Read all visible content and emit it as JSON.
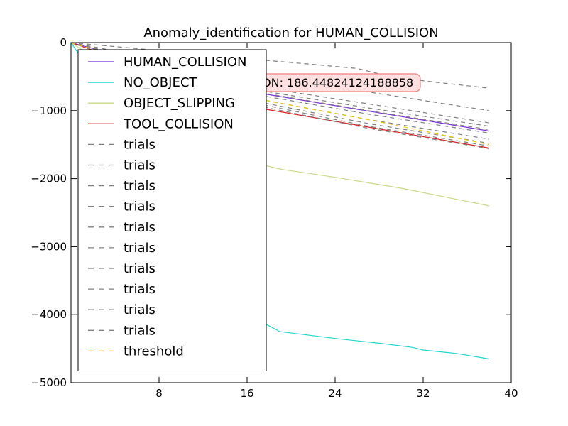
{
  "chart_data": {
    "type": "line",
    "title": "Anomaly_identification for HUMAN_COLLISION",
    "xlabel": "",
    "ylabel": "",
    "xlim": [
      0,
      40
    ],
    "ylim": [
      -5000,
      0
    ],
    "xticks": [
      8,
      16,
      24,
      32,
      40
    ],
    "xtick_labels": [
      "8",
      "16",
      "24",
      "32",
      "40"
    ],
    "yticks": [
      0,
      -1000,
      -2000,
      -3000,
      -4000,
      -5000
    ],
    "ytick_labels": [
      "0",
      "−1000",
      "−2000",
      "−3000",
      "−4000",
      "−5000"
    ],
    "grid": false,
    "legend_position": "upper-left",
    "annotation": {
      "text": "ON: 186.44824124188858",
      "x": 28.5,
      "y": -600,
      "style": "rounded-box",
      "facecolor": "#ffe0e0",
      "edgecolor": "#f08080"
    },
    "series": [
      {
        "name": "HUMAN_COLLISION",
        "color": "#7b2fd4",
        "style": "solid",
        "x": [
          0,
          17,
          38
        ],
        "y": [
          0,
          -740,
          -1300
        ]
      },
      {
        "name": "NO_OBJECT",
        "color": "#22d6d0",
        "style": "solid",
        "x": [
          0,
          17,
          19,
          24,
          28,
          31,
          32,
          35,
          38
        ],
        "y": [
          0,
          -4080,
          -4250,
          -4350,
          -4420,
          -4480,
          -4520,
          -4570,
          -4650
        ]
      },
      {
        "name": "OBJECT_SLIPPING",
        "color": "#c8da88",
        "style": "solid",
        "x": [
          0,
          17,
          19,
          24,
          30,
          38
        ],
        "y": [
          0,
          -1780,
          -1860,
          -1980,
          -2140,
          -2400
        ]
      },
      {
        "name": "TOOL_COLLISION",
        "color": "#d62020",
        "style": "solid",
        "x": [
          0,
          17,
          38
        ],
        "y": [
          0,
          -960,
          -1550
        ]
      },
      {
        "name": "trials",
        "color": "#808080",
        "style": "dashed",
        "x": [
          0,
          17,
          22,
          26,
          29,
          33,
          38
        ],
        "y": [
          0,
          -250,
          -320,
          -380,
          -500,
          -580,
          -670
        ]
      },
      {
        "name": "trials",
        "color": "#808080",
        "style": "dashed",
        "x": [
          0,
          17,
          26,
          38
        ],
        "y": [
          0,
          -520,
          -700,
          -1000
        ]
      },
      {
        "name": "trials",
        "color": "#808080",
        "style": "dashed",
        "x": [
          0,
          17,
          27,
          38
        ],
        "y": [
          0,
          -650,
          -900,
          -1180
        ]
      },
      {
        "name": "trials",
        "color": "#808080",
        "style": "dashed",
        "x": [
          0,
          17,
          27,
          38
        ],
        "y": [
          0,
          -700,
          -960,
          -1230
        ]
      },
      {
        "name": "trials",
        "color": "#808080",
        "style": "dashed",
        "x": [
          0,
          17,
          27,
          38
        ],
        "y": [
          0,
          -730,
          -1000,
          -1280
        ]
      },
      {
        "name": "trials",
        "color": "#808080",
        "style": "dashed",
        "x": [
          0,
          17,
          27,
          38
        ],
        "y": [
          0,
          -770,
          -1050,
          -1330
        ]
      },
      {
        "name": "trials",
        "color": "#808080",
        "style": "dashed",
        "x": [
          0,
          17,
          27,
          38
        ],
        "y": [
          0,
          -830,
          -1130,
          -1420
        ]
      },
      {
        "name": "trials",
        "color": "#808080",
        "style": "dashed",
        "x": [
          0,
          17,
          27,
          38
        ],
        "y": [
          0,
          -870,
          -1190,
          -1480
        ]
      },
      {
        "name": "trials",
        "color": "#808080",
        "style": "dashed",
        "x": [
          0,
          17,
          27,
          38
        ],
        "y": [
          0,
          -900,
          -1230,
          -1520
        ]
      },
      {
        "name": "trials",
        "color": "#808080",
        "style": "dashed",
        "x": [
          0,
          17,
          27,
          38
        ],
        "y": [
          0,
          -930,
          -1260,
          -1560
        ]
      },
      {
        "name": "threshold",
        "color": "#f0c800",
        "style": "dashed",
        "x": [
          0,
          17,
          27,
          38
        ],
        "y": [
          0,
          -830,
          -1130,
          -1500
        ]
      }
    ]
  }
}
